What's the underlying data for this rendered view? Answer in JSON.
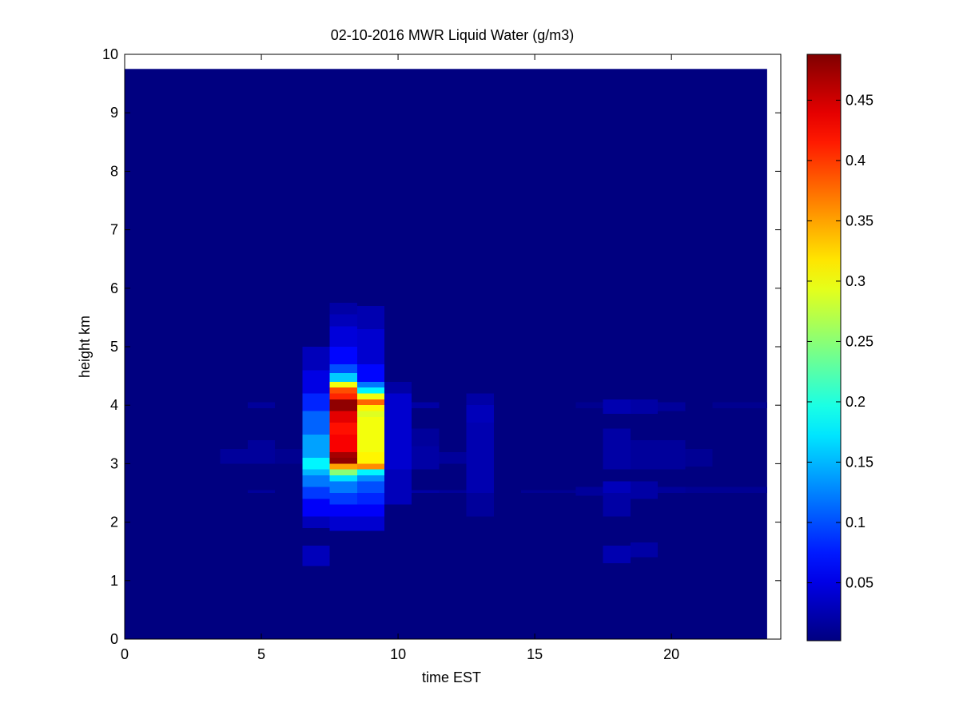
{
  "chart_data": {
    "type": "heatmap",
    "title": "02-10-2016 MWR Liquid Water (g/m3)",
    "xlabel": "time EST",
    "ylabel": "height km",
    "xlim": [
      0,
      24
    ],
    "ylim": [
      0,
      10
    ],
    "xticks": [
      0,
      5,
      10,
      15,
      20
    ],
    "yticks": [
      0,
      1,
      2,
      3,
      4,
      5,
      6,
      7,
      8,
      9,
      10
    ],
    "colormap": "jet",
    "colorbar": {
      "range": [
        0.002,
        0.488
      ],
      "ticks": [
        0.05,
        0.1,
        0.15,
        0.2,
        0.25,
        0.3,
        0.35,
        0.4,
        0.45
      ],
      "tick_labels": [
        "0.05",
        "0.1",
        "0.15",
        "0.2",
        "0.25",
        "0.3",
        "0.35",
        "0.4",
        "0.45"
      ]
    },
    "data_extent": {
      "time": [
        0,
        23.5
      ],
      "height": [
        0,
        9.75
      ]
    },
    "background_value": 0.002,
    "columns": [
      {
        "time": [
          3.5,
          4.5
        ],
        "cells": [
          {
            "h": [
              3.0,
              3.25
            ],
            "v": 0.015
          }
        ]
      },
      {
        "time": [
          4.5,
          5.5
        ],
        "cells": [
          {
            "h": [
              2.5,
              2.55
            ],
            "v": 0.015
          },
          {
            "h": [
              3.0,
              3.4
            ],
            "v": 0.015
          },
          {
            "h": [
              3.95,
              4.05
            ],
            "v": 0.015
          }
        ]
      },
      {
        "time": [
          5.5,
          6.5
        ],
        "cells": [
          {
            "h": [
              3.0,
              3.25
            ],
            "v": 0.01
          }
        ]
      },
      {
        "time": [
          6.5,
          7.5
        ],
        "cells": [
          {
            "h": [
              1.25,
              1.6
            ],
            "v": 0.03
          },
          {
            "h": [
              1.9,
              2.1
            ],
            "v": 0.03
          },
          {
            "h": [
              2.1,
              2.4
            ],
            "v": 0.06
          },
          {
            "h": [
              2.4,
              2.6
            ],
            "v": 0.09
          },
          {
            "h": [
              2.6,
              2.8
            ],
            "v": 0.12
          },
          {
            "h": [
              2.8,
              2.9
            ],
            "v": 0.15
          },
          {
            "h": [
              2.9,
              3.1
            ],
            "v": 0.18
          },
          {
            "h": [
              3.1,
              3.5
            ],
            "v": 0.14
          },
          {
            "h": [
              3.5,
              3.9
            ],
            "v": 0.11
          },
          {
            "h": [
              3.9,
              4.2
            ],
            "v": 0.08
          },
          {
            "h": [
              4.2,
              4.6
            ],
            "v": 0.05
          },
          {
            "h": [
              4.6,
              5.0
            ],
            "v": 0.03
          }
        ]
      },
      {
        "time": [
          7.5,
          8.5
        ],
        "cells": [
          {
            "h": [
              1.85,
              2.1
            ],
            "v": 0.04
          },
          {
            "h": [
              2.1,
              2.3
            ],
            "v": 0.06
          },
          {
            "h": [
              2.3,
              2.5
            ],
            "v": 0.09
          },
          {
            "h": [
              2.5,
              2.7
            ],
            "v": 0.12
          },
          {
            "h": [
              2.7,
              2.8
            ],
            "v": 0.17
          },
          {
            "h": [
              2.8,
              2.9
            ],
            "v": 0.25
          },
          {
            "h": [
              2.9,
              3.0
            ],
            "v": 0.35
          },
          {
            "h": [
              3.0,
              3.1
            ],
            "v": 0.48
          },
          {
            "h": [
              3.1,
              3.2
            ],
            "v": 0.47
          },
          {
            "h": [
              3.2,
              3.5
            ],
            "v": 0.43
          },
          {
            "h": [
              3.5,
              3.7
            ],
            "v": 0.42
          },
          {
            "h": [
              3.7,
              3.8
            ],
            "v": 0.44
          },
          {
            "h": [
              3.8,
              3.9
            ],
            "v": 0.44
          },
          {
            "h": [
              3.9,
              4.1
            ],
            "v": 0.48
          },
          {
            "h": [
              4.1,
              4.2
            ],
            "v": 0.41
          },
          {
            "h": [
              4.2,
              4.3
            ],
            "v": 0.39
          },
          {
            "h": [
              4.3,
              4.4
            ],
            "v": 0.3
          },
          {
            "h": [
              4.4,
              4.55
            ],
            "v": 0.16
          },
          {
            "h": [
              4.55,
              4.7
            ],
            "v": 0.1
          },
          {
            "h": [
              4.7,
              5.0
            ],
            "v": 0.065
          },
          {
            "h": [
              5.0,
              5.35
            ],
            "v": 0.045
          },
          {
            "h": [
              5.35,
              5.55
            ],
            "v": 0.03
          },
          {
            "h": [
              5.55,
              5.75
            ],
            "v": 0.02
          }
        ]
      },
      {
        "time": [
          8.5,
          9.5
        ],
        "cells": [
          {
            "h": [
              1.85,
              2.1
            ],
            "v": 0.04
          },
          {
            "h": [
              2.1,
              2.3
            ],
            "v": 0.06
          },
          {
            "h": [
              2.3,
              2.5
            ],
            "v": 0.08
          },
          {
            "h": [
              2.5,
              2.7
            ],
            "v": 0.1
          },
          {
            "h": [
              2.7,
              2.8
            ],
            "v": 0.13
          },
          {
            "h": [
              2.8,
              2.9
            ],
            "v": 0.18
          },
          {
            "h": [
              2.9,
              3.0
            ],
            "v": 0.36
          },
          {
            "h": [
              3.0,
              3.2
            ],
            "v": 0.31
          },
          {
            "h": [
              3.2,
              3.8
            ],
            "v": 0.3
          },
          {
            "h": [
              3.8,
              3.9
            ],
            "v": 0.29
          },
          {
            "h": [
              3.9,
              4.0
            ],
            "v": 0.31
          },
          {
            "h": [
              4.0,
              4.1
            ],
            "v": 0.38
          },
          {
            "h": [
              4.1,
              4.2
            ],
            "v": 0.3
          },
          {
            "h": [
              4.2,
              4.3
            ],
            "v": 0.18
          },
          {
            "h": [
              4.3,
              4.4
            ],
            "v": 0.12
          },
          {
            "h": [
              4.4,
              4.7
            ],
            "v": 0.065
          },
          {
            "h": [
              4.7,
              5.3
            ],
            "v": 0.04
          },
          {
            "h": [
              5.3,
              5.7
            ],
            "v": 0.025
          }
        ]
      },
      {
        "time": [
          9.5,
          10.5
        ],
        "cells": [
          {
            "h": [
              2.3,
              2.9
            ],
            "v": 0.03
          },
          {
            "h": [
              2.9,
              3.7
            ],
            "v": 0.04
          },
          {
            "h": [
              3.7,
              4.2
            ],
            "v": 0.04
          },
          {
            "h": [
              4.2,
              4.4
            ],
            "v": 0.02
          }
        ]
      },
      {
        "time": [
          10.5,
          11.5
        ],
        "cells": [
          {
            "h": [
              2.5,
              2.55
            ],
            "v": 0.02
          },
          {
            "h": [
              2.9,
              3.3
            ],
            "v": 0.02
          },
          {
            "h": [
              3.3,
              3.6
            ],
            "v": 0.015
          },
          {
            "h": [
              3.95,
              4.05
            ],
            "v": 0.02
          }
        ]
      },
      {
        "time": [
          11.5,
          12.5
        ],
        "cells": [
          {
            "h": [
              2.5,
              2.55
            ],
            "v": 0.015
          },
          {
            "h": [
              3.0,
              3.2
            ],
            "v": 0.015
          }
        ]
      },
      {
        "time": [
          12.5,
          13.5
        ],
        "cells": [
          {
            "h": [
              2.1,
              2.5
            ],
            "v": 0.015
          },
          {
            "h": [
              2.5,
              3.7
            ],
            "v": 0.025
          },
          {
            "h": [
              3.7,
              4.0
            ],
            "v": 0.03
          },
          {
            "h": [
              4.0,
              4.2
            ],
            "v": 0.02
          }
        ]
      },
      {
        "time": [
          14.5,
          15.5
        ],
        "cells": [
          {
            "h": [
              2.5,
              2.55
            ],
            "v": 0.012
          }
        ]
      },
      {
        "time": [
          15.5,
          16.5
        ],
        "cells": [
          {
            "h": [
              2.5,
              2.55
            ],
            "v": 0.012
          }
        ]
      },
      {
        "time": [
          16.5,
          17.5
        ],
        "cells": [
          {
            "h": [
              2.45,
              2.6
            ],
            "v": 0.015
          },
          {
            "h": [
              3.95,
              4.05
            ],
            "v": 0.01
          }
        ]
      },
      {
        "time": [
          17.5,
          18.5
        ],
        "cells": [
          {
            "h": [
              1.3,
              1.6
            ],
            "v": 0.025
          },
          {
            "h": [
              2.1,
              2.5
            ],
            "v": 0.02
          },
          {
            "h": [
              2.5,
              2.7
            ],
            "v": 0.03
          },
          {
            "h": [
              2.9,
              3.6
            ],
            "v": 0.02
          },
          {
            "h": [
              3.85,
              4.1
            ],
            "v": 0.025
          }
        ]
      },
      {
        "time": [
          18.5,
          19.5
        ],
        "cells": [
          {
            "h": [
              1.4,
              1.65
            ],
            "v": 0.02
          },
          {
            "h": [
              2.4,
              2.7
            ],
            "v": 0.02
          },
          {
            "h": [
              2.9,
              3.4
            ],
            "v": 0.015
          },
          {
            "h": [
              3.85,
              4.1
            ],
            "v": 0.02
          }
        ]
      },
      {
        "time": [
          19.5,
          20.5
        ],
        "cells": [
          {
            "h": [
              2.5,
              2.6
            ],
            "v": 0.015
          },
          {
            "h": [
              2.9,
              3.4
            ],
            "v": 0.015
          },
          {
            "h": [
              3.9,
              4.05
            ],
            "v": 0.015
          }
        ]
      },
      {
        "time": [
          20.5,
          21.5
        ],
        "cells": [
          {
            "h": [
              2.5,
              2.6
            ],
            "v": 0.012
          },
          {
            "h": [
              2.95,
              3.25
            ],
            "v": 0.012
          }
        ]
      },
      {
        "time": [
          21.5,
          22.5
        ],
        "cells": [
          {
            "h": [
              2.5,
              2.6
            ],
            "v": 0.012
          },
          {
            "h": [
              3.95,
              4.05
            ],
            "v": 0.01
          }
        ]
      },
      {
        "time": [
          22.5,
          23.5
        ],
        "cells": [
          {
            "h": [
              2.5,
              2.6
            ],
            "v": 0.012
          },
          {
            "h": [
              3.95,
              4.05
            ],
            "v": 0.01
          }
        ]
      }
    ]
  }
}
